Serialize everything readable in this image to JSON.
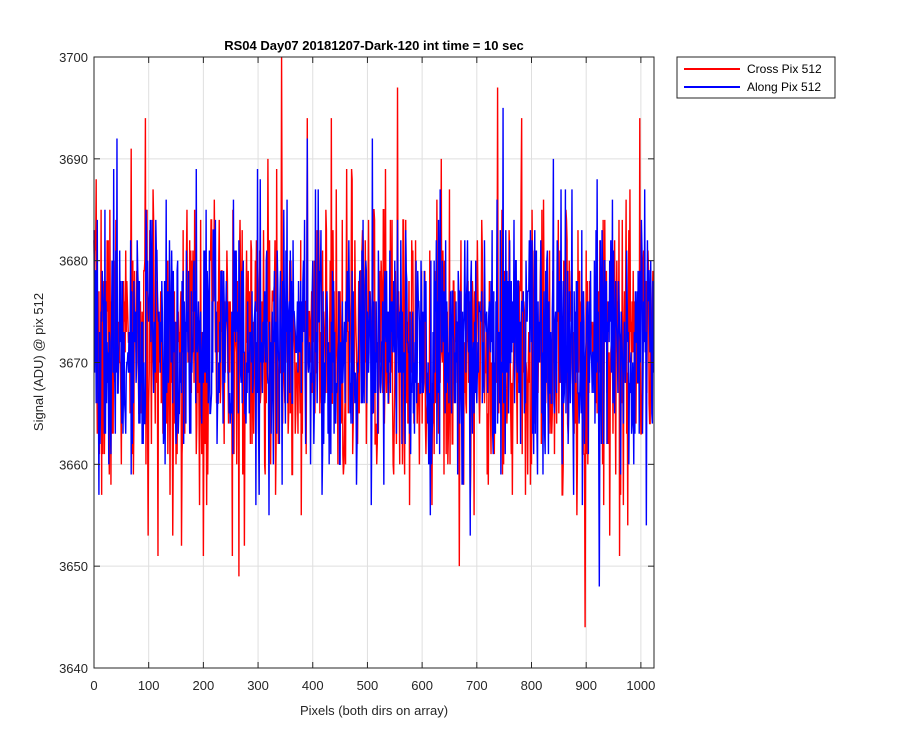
{
  "chart_data": {
    "type": "line",
    "title": "RS04 Day07 20181207-Dark-120 int time = 10 sec",
    "xlabel": "Pixels (both dirs on array)",
    "ylabel": "Signal (ADU) @ pix 512",
    "xlim": [
      0,
      1024
    ],
    "ylim": [
      3640,
      3700
    ],
    "xticks": [
      0,
      100,
      200,
      300,
      400,
      500,
      600,
      700,
      800,
      900,
      1000
    ],
    "yticks": [
      3640,
      3650,
      3660,
      3670,
      3680,
      3690,
      3700
    ],
    "grid": true,
    "legend_position": "outside-top-right",
    "series": [
      {
        "name": "Cross Pix 512",
        "color": "#ff0000",
        "noise": {
          "n_points": 1024,
          "mean": 3671.5,
          "stdev": 7.3,
          "min": 3644,
          "max": 3700,
          "seed": 7
        },
        "features": [
          {
            "x": 343,
            "y": 3700
          },
          {
            "x": 265,
            "y": 3649
          },
          {
            "x": 898,
            "y": 3644
          },
          {
            "x": 961,
            "y": 3651
          },
          {
            "x": 555,
            "y": 3697
          },
          {
            "x": 738,
            "y": 3697
          },
          {
            "x": 998,
            "y": 3694
          },
          {
            "x": 160,
            "y": 3652
          },
          {
            "x": 200,
            "y": 3651
          }
        ]
      },
      {
        "name": "Along Pix 512",
        "color": "#0000ff",
        "noise": {
          "n_points": 1024,
          "mean": 3672,
          "stdev": 6.4,
          "min": 3648,
          "max": 3695,
          "seed": 19
        },
        "features": [
          {
            "x": 924,
            "y": 3648
          },
          {
            "x": 42,
            "y": 3692
          },
          {
            "x": 390,
            "y": 3692
          },
          {
            "x": 748,
            "y": 3695
          },
          {
            "x": 688,
            "y": 3653
          },
          {
            "x": 1010,
            "y": 3654
          },
          {
            "x": 320,
            "y": 3655
          }
        ]
      }
    ]
  }
}
